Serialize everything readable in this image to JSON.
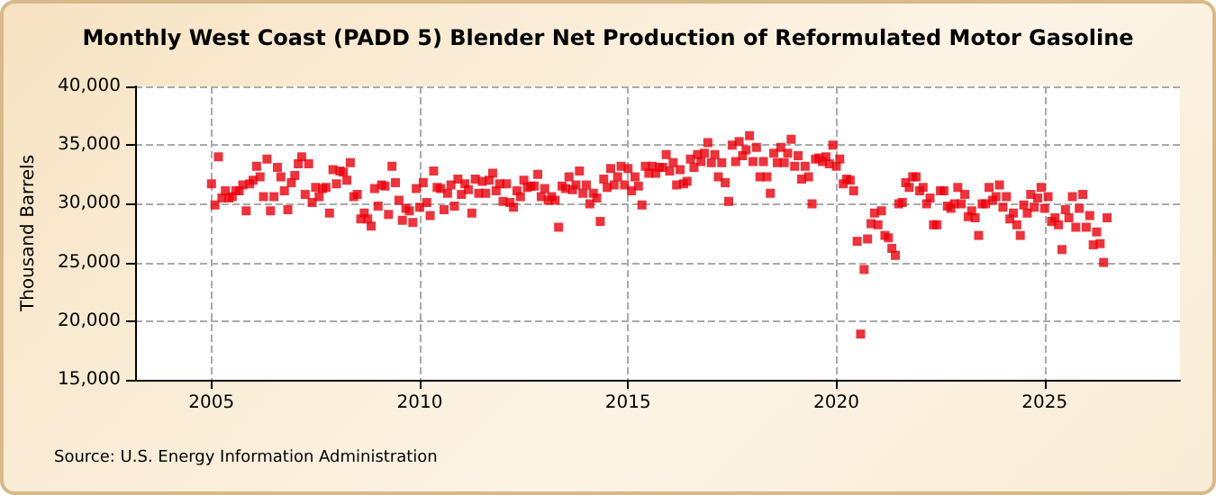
{
  "chart_data": {
    "type": "scatter",
    "title": "Monthly West Coast (PADD 5) Blender Net Production of Reformulated Motor Gasoline",
    "ylabel": "Thousand Barrels",
    "annotations": [
      "Source: U.S. Energy Information Administration"
    ],
    "series": [
      {
        "color": "#e8000b",
        "x": [
          "2005-01",
          "2005-02",
          "2005-03",
          "2005-04",
          "2005-05",
          "2005-06",
          "2005-07",
          "2005-08",
          "2005-09",
          "2005-10",
          "2005-11",
          "2005-12",
          "2006-01",
          "2006-02",
          "2006-03",
          "2006-04",
          "2006-05",
          "2006-06",
          "2006-07",
          "2006-08",
          "2006-09",
          "2006-10",
          "2006-11",
          "2006-12",
          "2007-01",
          "2007-02",
          "2007-03",
          "2007-04",
          "2007-05",
          "2007-06",
          "2007-07",
          "2007-08",
          "2007-09",
          "2007-10",
          "2007-11",
          "2007-12",
          "2008-01",
          "2008-02",
          "2008-03",
          "2008-04",
          "2008-05",
          "2008-06",
          "2008-07",
          "2008-08",
          "2008-09",
          "2008-10",
          "2008-11",
          "2008-12",
          "2009-01",
          "2009-02",
          "2009-03",
          "2009-04",
          "2009-05",
          "2009-06",
          "2009-07",
          "2009-08",
          "2009-09",
          "2009-10",
          "2009-11",
          "2009-12",
          "2010-01",
          "2010-02",
          "2010-03",
          "2010-04",
          "2010-05",
          "2010-06",
          "2010-07",
          "2010-08",
          "2010-09",
          "2010-10",
          "2010-11",
          "2010-12",
          "2011-01",
          "2011-02",
          "2011-03",
          "2011-04",
          "2011-05",
          "2011-06",
          "2011-07",
          "2011-08",
          "2011-09",
          "2011-10",
          "2011-11",
          "2011-12",
          "2012-01",
          "2012-02",
          "2012-03",
          "2012-04",
          "2012-05",
          "2012-06",
          "2012-07",
          "2012-08",
          "2012-09",
          "2012-10",
          "2012-11",
          "2012-12",
          "2013-01",
          "2013-02",
          "2013-03",
          "2013-04",
          "2013-05",
          "2013-06",
          "2013-07",
          "2013-08",
          "2013-09",
          "2013-10",
          "2013-11",
          "2013-12",
          "2014-01",
          "2014-02",
          "2014-03",
          "2014-04",
          "2014-05",
          "2014-06",
          "2014-07",
          "2014-08",
          "2014-09",
          "2014-10",
          "2014-11",
          "2014-12",
          "2015-01",
          "2015-02",
          "2015-03",
          "2015-04",
          "2015-05",
          "2015-06",
          "2015-07",
          "2015-08",
          "2015-09",
          "2015-10",
          "2015-11",
          "2015-12",
          "2016-01",
          "2016-02",
          "2016-03",
          "2016-04",
          "2016-05",
          "2016-06",
          "2016-07",
          "2016-08",
          "2016-09",
          "2016-10",
          "2016-11",
          "2016-12",
          "2017-01",
          "2017-02",
          "2017-03",
          "2017-04",
          "2017-05",
          "2017-06",
          "2017-07",
          "2017-08",
          "2017-09",
          "2017-10",
          "2017-11",
          "2017-12",
          "2018-01",
          "2018-02",
          "2018-03",
          "2018-04",
          "2018-05",
          "2018-06",
          "2018-07",
          "2018-08",
          "2018-09",
          "2018-10",
          "2018-11",
          "2018-12",
          "2019-01",
          "2019-02",
          "2019-03",
          "2019-04",
          "2019-05",
          "2019-06",
          "2019-07",
          "2019-08",
          "2019-09",
          "2019-10",
          "2019-11",
          "2019-12",
          "2020-01",
          "2020-02",
          "2020-03",
          "2020-04",
          "2020-05",
          "2020-06",
          "2020-07",
          "2020-08",
          "2020-09",
          "2020-10",
          "2020-11",
          "2020-12",
          "2021-01",
          "2021-02",
          "2021-03",
          "2021-04",
          "2021-05",
          "2021-06",
          "2021-07",
          "2021-08",
          "2021-09",
          "2021-10",
          "2021-11",
          "2021-12",
          "2022-01",
          "2022-02",
          "2022-03",
          "2022-04",
          "2022-05",
          "2022-06",
          "2022-07",
          "2022-08",
          "2022-09",
          "2022-10",
          "2022-11",
          "2022-12",
          "2023-01",
          "2023-02",
          "2023-03",
          "2023-04",
          "2023-05",
          "2023-06",
          "2023-07",
          "2023-08",
          "2023-09",
          "2023-10",
          "2023-11",
          "2023-12",
          "2024-01",
          "2024-02",
          "2024-03",
          "2024-04",
          "2024-05",
          "2024-06",
          "2024-07",
          "2024-08",
          "2024-09",
          "2024-10",
          "2024-11",
          "2024-12",
          "2025-01",
          "2025-02",
          "2025-03",
          "2025-04",
          "2025-05",
          "2025-06",
          "2025-07",
          "2025-08",
          "2025-09",
          "2025-10",
          "2025-11",
          "2025-12",
          "2026-01",
          "2026-02",
          "2026-03",
          "2026-04",
          "2026-05",
          "2026-06",
          "2026-07"
        ],
        "values": [
          31700,
          29900,
          34000,
          30500,
          31100,
          30500,
          30600,
          31100,
          31100,
          31600,
          29400,
          31700,
          32000,
          33200,
          32300,
          30600,
          33800,
          29400,
          30600,
          33100,
          32300,
          31100,
          29500,
          31800,
          32400,
          33400,
          34000,
          30800,
          33400,
          30100,
          31400,
          30600,
          31300,
          31400,
          29200,
          32900,
          31700,
          32800,
          32700,
          32000,
          33500,
          30600,
          30800,
          28700,
          29200,
          28700,
          28100,
          31300,
          29800,
          31600,
          31500,
          29100,
          33200,
          31800,
          30300,
          28600,
          29600,
          29400,
          28400,
          31300,
          29700,
          31800,
          30100,
          29000,
          32800,
          31400,
          31300,
          29500,
          30900,
          31600,
          29800,
          32100,
          30800,
          31700,
          31200,
          29200,
          32100,
          30900,
          31900,
          30900,
          32000,
          32600,
          31100,
          31700,
          30200,
          31700,
          30100,
          29700,
          31100,
          30600,
          32000,
          31400,
          31500,
          31500,
          32500,
          30600,
          31300,
          30300,
          30600,
          30300,
          28000,
          31500,
          31300,
          32300,
          31200,
          31600,
          32800,
          30900,
          31600,
          30000,
          30900,
          30500,
          28500,
          32100,
          31400,
          33000,
          31600,
          32300,
          33200,
          31600,
          33000,
          31100,
          32300,
          31500,
          29900,
          33200,
          32600,
          33200,
          32600,
          33100,
          33100,
          34200,
          32800,
          33500,
          31600,
          32900,
          31700,
          31900,
          33800,
          33100,
          34200,
          33600,
          34300,
          35200,
          33500,
          34200,
          32300,
          33500,
          31800,
          30200,
          35000,
          33600,
          35300,
          34100,
          34600,
          35800,
          33600,
          34800,
          32300,
          33600,
          32300,
          30900,
          34300,
          33500,
          34800,
          33500,
          34300,
          35500,
          33200,
          34100,
          32100,
          33200,
          32300,
          30000,
          33800,
          33900,
          33600,
          34000,
          33400,
          35000,
          33200,
          33800,
          31700,
          32100,
          32000,
          31100,
          26800,
          18900,
          24400,
          27000,
          28300,
          29200,
          28200,
          29400,
          27300,
          27100,
          26200,
          25600,
          30000,
          30100,
          31800,
          31400,
          32300,
          32300,
          31100,
          31400,
          30000,
          30500,
          28200,
          28200,
          31100,
          31100,
          29800,
          29600,
          30000,
          31400,
          30000,
          30800,
          28900,
          29400,
          28800,
          27300,
          30000,
          30000,
          31400,
          30300,
          30600,
          31600,
          29700,
          30600,
          28700,
          29200,
          28200,
          27300,
          29900,
          29200,
          30800,
          29700,
          30500,
          31400,
          29600,
          30600,
          28500,
          28800,
          28200,
          26100,
          29500,
          28800,
          30600,
          28000,
          29600,
          30800,
          28000,
          29000,
          26500,
          27600,
          26600,
          25000,
          28800
        ]
      }
    ],
    "xlim": [
      "2003-03",
      "2028-04"
    ],
    "xticks": [
      "2005",
      "2010",
      "2015",
      "2020",
      "2025"
    ],
    "ylim": [
      15000,
      40000
    ],
    "yticks": [
      {
        "value": 15000,
        "label": "15,000"
      },
      {
        "value": 20000,
        "label": "20,000"
      },
      {
        "value": 25000,
        "label": "25,000"
      },
      {
        "value": 30000,
        "label": "30,000"
      },
      {
        "value": 35000,
        "label": "35,000"
      },
      {
        "value": 40000,
        "label": "40,000"
      }
    ],
    "grid": true,
    "marker": "square"
  }
}
